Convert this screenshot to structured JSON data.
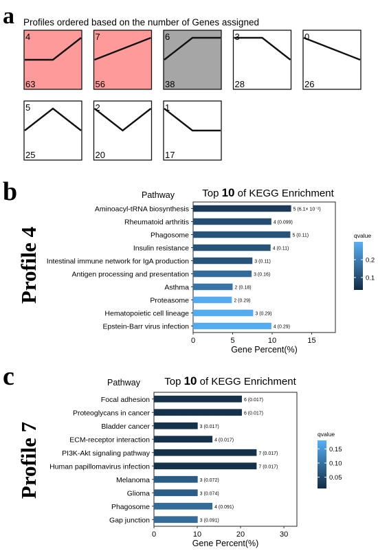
{
  "panel_a": {
    "letter": "a",
    "title": "Profiles ordered based on the number of Genes assigned",
    "colors": {
      "highlight": "#ff9a9a",
      "grey": "#a6a6a6",
      "none": "#ffffff"
    },
    "profiles": [
      {
        "id": "4",
        "count": "63",
        "fill": "highlight",
        "shape": [
          0.5,
          0.5,
          0.0
        ]
      },
      {
        "id": "7",
        "count": "56",
        "fill": "highlight",
        "shape": [
          0.5,
          0.25,
          0.0
        ]
      },
      {
        "id": "6",
        "count": "38",
        "fill": "grey",
        "shape": [
          0.5,
          0.0,
          0.0
        ]
      },
      {
        "id": "3",
        "count": "28",
        "fill": "none",
        "shape": [
          0.0,
          0.0,
          0.5
        ]
      },
      {
        "id": "0",
        "count": "26",
        "fill": "none",
        "shape": [
          0.0,
          0.25,
          0.5
        ]
      },
      {
        "id": "5",
        "count": "25",
        "fill": "none",
        "shape": [
          0.5,
          0.0,
          0.5
        ]
      },
      {
        "id": "2",
        "count": "20",
        "fill": "none",
        "shape": [
          0.0,
          0.5,
          0.0
        ]
      },
      {
        "id": "1",
        "count": "17",
        "fill": "none",
        "shape": [
          0.0,
          0.5,
          0.5
        ]
      }
    ]
  },
  "panel_b": {
    "letter": "b",
    "side_label": "Profile 4"
  },
  "panel_c": {
    "letter": "c",
    "side_label": "Profile 7"
  },
  "chart_data": [
    {
      "type": "bar",
      "orientation": "horizontal",
      "title_pre": "Top ",
      "title_num": "10",
      "title_post": " of KEGG Enrichment",
      "ylabel": "Pathway",
      "xlabel": "Gene Percent(%)",
      "xlim": [
        0,
        18
      ],
      "xticks": [
        0,
        5,
        10,
        15
      ],
      "legend_title": "qvalue",
      "legend_ticks": [
        0.1,
        0.2
      ],
      "qrange": [
        0.03,
        0.3
      ],
      "grid": false,
      "legend_position": "right",
      "categories": [
        "Aminoacyl-tRNA biosynthesis",
        "Rheumatoid arthritis",
        "Phagosome",
        "Insulin resistance",
        "Intestinal immune network for IgA production",
        "Antigen processing and presentation",
        "Asthma",
        "Proteasome",
        "Hematopoietic cell lineage",
        "Epstein-Barr virus infection"
      ],
      "values": [
        12.4,
        9.9,
        12.3,
        9.8,
        7.5,
        7.4,
        5.0,
        4.9,
        7.6,
        9.9
      ],
      "qvalues": [
        0.06,
        0.099,
        0.11,
        0.11,
        0.11,
        0.16,
        0.18,
        0.29,
        0.29,
        0.29
      ],
      "labels": [
        "5 (6.1× 10⁻²)",
        "4 (0.099)",
        "5 (0.11)",
        "4 (0.11)",
        "3 (0.11)",
        "3 (0.16)",
        "2 (0.18)",
        "2 (0.29)",
        "3 (0.29)",
        "4 (0.29)"
      ]
    },
    {
      "type": "bar",
      "orientation": "horizontal",
      "title_pre": "Top ",
      "title_num": "10",
      "title_post": " of KEGG Enrichment",
      "ylabel": "Pathway",
      "xlabel": "Gene Percent(%)",
      "xlim": [
        0,
        33
      ],
      "xticks": [
        0,
        10,
        20,
        30
      ],
      "legend_title": "qvalue",
      "legend_ticks": [
        0.05,
        0.1,
        0.15
      ],
      "legend_tick_labels": [
        "0.05",
        "0.10",
        "0.15"
      ],
      "qrange": [
        0.01,
        0.18
      ],
      "grid": false,
      "legend_position": "right",
      "categories": [
        "Focal adhesion",
        "Proteoglycans in cancer",
        "Bladder cancer",
        "ECM-receptor interaction",
        "PI3K-Akt signaling pathway",
        "Human papillomavirus infection",
        "Melanoma",
        "Glioma",
        "Phagosome",
        "Gap junction"
      ],
      "values": [
        20.3,
        20.3,
        10.1,
        13.5,
        23.7,
        23.7,
        10.1,
        10.1,
        13.5,
        10.1
      ],
      "qvalues": [
        0.017,
        0.017,
        0.017,
        0.017,
        0.017,
        0.017,
        0.072,
        0.074,
        0.091,
        0.091
      ],
      "labels": [
        "6 (0.017)",
        "6 (0.017)",
        "3 (0.017)",
        "4 (0.017)",
        "7 (0.017)",
        "7 (0.017)",
        "3 (0.072)",
        "3 (0.074)",
        "4 (0.091)",
        "3 (0.091)"
      ]
    }
  ]
}
